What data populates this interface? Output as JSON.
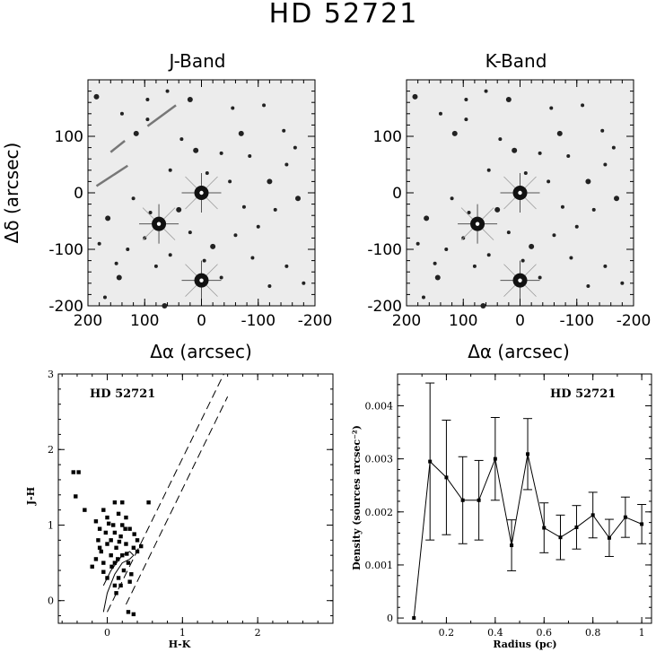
{
  "title": "HD 52721",
  "images": [
    {
      "id": "j",
      "label": "J-Band",
      "xlabel": "Δα (arcsec)",
      "ylabel": "Δδ (arcsec)",
      "xlim": [
        200,
        -200
      ],
      "ylim": [
        -200,
        200
      ],
      "xticks": [
        "200",
        "100",
        "0",
        "-100",
        "-200"
      ],
      "yticks": [
        "-200",
        "-100",
        "0",
        "100"
      ],
      "bright_stars": [
        [
          0,
          0
        ],
        [
          0,
          -155
        ],
        [
          75,
          -55
        ]
      ],
      "stars": [
        [
          185,
          170
        ],
        [
          140,
          140
        ],
        [
          95,
          165
        ],
        [
          60,
          180
        ],
        [
          20,
          165
        ],
        [
          -55,
          150
        ],
        [
          -110,
          155
        ],
        [
          -145,
          110
        ],
        [
          -70,
          105
        ],
        [
          -35,
          70
        ],
        [
          -85,
          65
        ],
        [
          -150,
          50
        ],
        [
          -170,
          -10
        ],
        [
          -130,
          -30
        ],
        [
          -100,
          -60
        ],
        [
          -60,
          -75
        ],
        [
          -20,
          -95
        ],
        [
          -150,
          -130
        ],
        [
          -120,
          -165
        ],
        [
          150,
          -125
        ],
        [
          145,
          -150
        ],
        [
          130,
          -100
        ],
        [
          100,
          -80
        ],
        [
          55,
          -110
        ],
        [
          40,
          -30
        ],
        [
          20,
          -70
        ],
        [
          90,
          -35
        ],
        [
          120,
          -10
        ],
        [
          165,
          -45
        ],
        [
          180,
          -90
        ],
        [
          -5,
          -120
        ],
        [
          -35,
          -150
        ],
        [
          10,
          75
        ],
        [
          35,
          95
        ],
        [
          55,
          40
        ],
        [
          95,
          130
        ],
        [
          115,
          105
        ],
        [
          -10,
          35
        ],
        [
          -50,
          20
        ],
        [
          -75,
          -25
        ],
        [
          -120,
          20
        ],
        [
          -165,
          80
        ],
        [
          -180,
          -160
        ],
        [
          170,
          -185
        ],
        [
          65,
          -200
        ],
        [
          -90,
          -115
        ],
        [
          80,
          -130
        ]
      ],
      "streaks": [
        [
          [
            185,
            12
          ],
          [
            130,
            48
          ]
        ],
        [
          [
            160,
            72
          ],
          [
            135,
            92
          ]
        ],
        [
          [
            95,
            118
          ],
          [
            45,
            155
          ]
        ]
      ]
    },
    {
      "id": "k",
      "label": "K-Band",
      "xlabel": "Δα (arcsec)",
      "ylabel": "",
      "xlim": [
        200,
        -200
      ],
      "ylim": [
        -200,
        200
      ],
      "xticks": [
        "200",
        "100",
        "0",
        "-100",
        "-200"
      ],
      "yticks": [
        "-200",
        "-100",
        "0",
        "100"
      ],
      "bright_stars": [
        [
          0,
          0
        ],
        [
          0,
          -155
        ],
        [
          75,
          -55
        ]
      ],
      "stars": [
        [
          185,
          170
        ],
        [
          140,
          140
        ],
        [
          95,
          165
        ],
        [
          60,
          180
        ],
        [
          20,
          165
        ],
        [
          -55,
          150
        ],
        [
          -110,
          155
        ],
        [
          -145,
          110
        ],
        [
          -70,
          105
        ],
        [
          -35,
          70
        ],
        [
          -85,
          65
        ],
        [
          -150,
          50
        ],
        [
          -170,
          -10
        ],
        [
          -130,
          -30
        ],
        [
          -100,
          -60
        ],
        [
          -60,
          -75
        ],
        [
          -20,
          -95
        ],
        [
          -150,
          -130
        ],
        [
          -120,
          -165
        ],
        [
          150,
          -125
        ],
        [
          145,
          -150
        ],
        [
          130,
          -100
        ],
        [
          100,
          -80
        ],
        [
          55,
          -110
        ],
        [
          40,
          -30
        ],
        [
          20,
          -70
        ],
        [
          90,
          -35
        ],
        [
          120,
          -10
        ],
        [
          165,
          -45
        ],
        [
          180,
          -90
        ],
        [
          -5,
          -120
        ],
        [
          -35,
          -150
        ],
        [
          10,
          75
        ],
        [
          35,
          95
        ],
        [
          55,
          40
        ],
        [
          95,
          130
        ],
        [
          115,
          105
        ],
        [
          -10,
          35
        ],
        [
          -50,
          20
        ],
        [
          -75,
          -25
        ],
        [
          -120,
          20
        ],
        [
          -165,
          80
        ],
        [
          -180,
          -160
        ],
        [
          170,
          -185
        ],
        [
          65,
          -200
        ],
        [
          -90,
          -115
        ],
        [
          80,
          -130
        ]
      ],
      "streaks": []
    }
  ],
  "chart_data": [
    {
      "type": "scatter",
      "label": "HD 52721",
      "xlabel": "H-K",
      "ylabel": "J-H",
      "xlim": [
        -0.65,
        3.0
      ],
      "ylim": [
        -0.3,
        3.0
      ],
      "xticks": [
        0,
        1,
        2
      ],
      "yticks": [
        0,
        1,
        2,
        3
      ],
      "reddening_lines": [
        [
          [
            0.0,
            -0.15
          ],
          [
            1.55,
            3.0
          ]
        ],
        [
          [
            0.25,
            -0.05
          ],
          [
            1.6,
            2.7
          ]
        ]
      ],
      "sequence_curve": [
        [
          -0.05,
          -0.15
        ],
        [
          0.0,
          0.1
        ],
        [
          0.1,
          0.35
        ],
        [
          0.2,
          0.5
        ],
        [
          0.3,
          0.55
        ],
        [
          0.35,
          0.6
        ],
        [
          0.3,
          0.65
        ],
        [
          0.2,
          0.6
        ],
        [
          0.05,
          0.4
        ],
        [
          -0.05,
          0.2
        ]
      ],
      "points": [
        [
          -0.45,
          1.7
        ],
        [
          -0.38,
          1.7
        ],
        [
          -0.42,
          1.38
        ],
        [
          -0.3,
          1.2
        ],
        [
          -0.15,
          1.05
        ],
        [
          -0.1,
          0.95
        ],
        [
          -0.05,
          1.2
        ],
        [
          0.0,
          1.1
        ],
        [
          0.1,
          1.3
        ],
        [
          0.15,
          1.15
        ],
        [
          0.2,
          1.3
        ],
        [
          0.25,
          1.1
        ],
        [
          0.55,
          1.3
        ],
        [
          0.4,
          0.8
        ],
        [
          0.4,
          0.65
        ],
        [
          0.45,
          0.72
        ],
        [
          -0.2,
          0.45
        ],
        [
          -0.15,
          0.55
        ],
        [
          -0.1,
          0.7
        ],
        [
          -0.05,
          0.5
        ],
        [
          0.0,
          0.3
        ],
        [
          0.05,
          0.8
        ],
        [
          0.05,
          0.6
        ],
        [
          0.1,
          0.9
        ],
        [
          0.1,
          0.5
        ],
        [
          0.12,
          0.7
        ],
        [
          0.15,
          0.3
        ],
        [
          0.18,
          0.85
        ],
        [
          0.2,
          0.6
        ],
        [
          0.22,
          0.4
        ],
        [
          0.25,
          0.75
        ],
        [
          0.28,
          0.5
        ],
        [
          0.3,
          0.95
        ],
        [
          0.32,
          0.35
        ],
        [
          0.35,
          0.7
        ],
        [
          0.0,
          0.75
        ],
        [
          -0.02,
          0.9
        ],
        [
          0.08,
          1.0
        ],
        [
          0.14,
          0.55
        ],
        [
          0.24,
          0.95
        ],
        [
          0.3,
          0.25
        ],
        [
          0.1,
          0.2
        ],
        [
          -0.08,
          0.65
        ],
        [
          0.06,
          0.45
        ],
        [
          0.2,
          1.0
        ],
        [
          -0.12,
          0.8
        ],
        [
          0.26,
          0.62
        ],
        [
          0.02,
          1.02
        ],
        [
          0.16,
          0.78
        ],
        [
          0.36,
          0.88
        ],
        [
          0.28,
          -0.15
        ],
        [
          0.35,
          -0.18
        ],
        [
          0.12,
          0.1
        ],
        [
          -0.05,
          0.38
        ],
        [
          0.18,
          0.2
        ]
      ]
    },
    {
      "type": "line",
      "label": "HD 52721",
      "xlabel": "Radius (pc)",
      "ylabel": "Density (sources arcsec⁻²)",
      "xlim": [
        0.0,
        1.04
      ],
      "ylim": [
        -0.0001,
        0.0046
      ],
      "xticks": [
        0.2,
        0.4,
        0.6,
        0.8,
        1
      ],
      "xtick_labels": [
        "0.2",
        "0.4",
        "0.6",
        "0.8",
        "1"
      ],
      "yticks": [
        0,
        0.001,
        0.002,
        0.003,
        0.004
      ],
      "ytick_labels": [
        "0",
        "0.001",
        "0.002",
        "0.003",
        "0.004"
      ],
      "x": [
        0.067,
        0.133,
        0.2,
        0.267,
        0.333,
        0.4,
        0.467,
        0.533,
        0.6,
        0.667,
        0.733,
        0.8,
        0.867,
        0.933,
        1.0
      ],
      "y": [
        0.0,
        0.00295,
        0.00265,
        0.00222,
        0.00222,
        0.003,
        0.00137,
        0.00309,
        0.0017,
        0.00152,
        0.00171,
        0.00194,
        0.00151,
        0.0019,
        0.00177
      ],
      "err": [
        0.0,
        0.00148,
        0.00108,
        0.00082,
        0.00075,
        0.00078,
        0.00048,
        0.00067,
        0.00047,
        0.00042,
        0.00041,
        0.00043,
        0.00035,
        0.00038,
        0.00037
      ]
    }
  ]
}
